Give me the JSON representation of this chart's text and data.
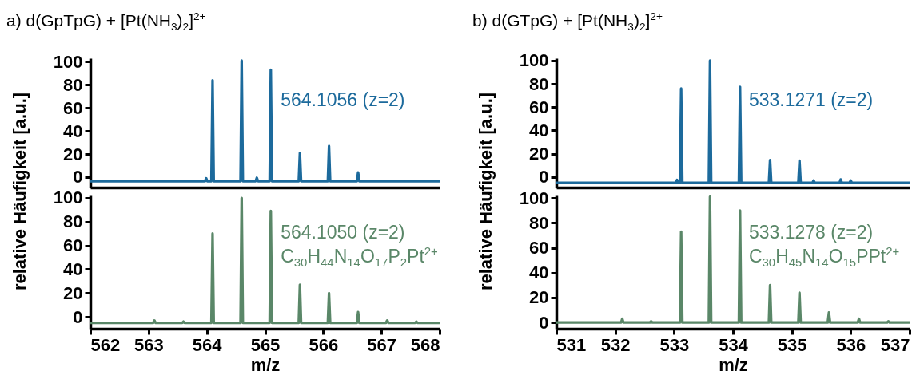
{
  "chart_data": [
    {
      "type": "line",
      "title": "a) d(GpTpG) + [Pt(NH$_{3}$)$_{2}$]$^{2+}$",
      "xlim": [
        562,
        568
      ],
      "ylim": [
        -9,
        103
      ],
      "yticks": [
        0,
        20,
        40,
        60,
        80,
        100
      ],
      "tick_labels": "y",
      "annotations": [
        "564.1056 (z=2)"
      ],
      "series": [
        {
          "color": "#1c6a9c",
          "x": [
            562,
            563.97,
            563.99,
            564.01,
            564.08,
            564.1,
            564.12,
            564.58,
            564.6,
            564.62,
            564.84,
            564.86,
            564.88,
            565.08,
            565.1,
            565.12,
            565.58,
            565.6,
            565.62,
            566.08,
            566.1,
            566.12,
            566.58,
            566.6,
            566.62,
            568
          ],
          "values": [
            -3.5,
            -3.5,
            -1,
            -3.5,
            -3.5,
            84,
            -3.5,
            -3.5,
            101,
            -3.5,
            -3.5,
            -0.5,
            -3.5,
            -3.5,
            93,
            -3.5,
            -3.5,
            21,
            -3.5,
            -3.5,
            27,
            -3.5,
            -3.5,
            4,
            -3.5,
            -3.5
          ]
        }
      ]
    },
    {
      "type": "line",
      "xlabel": "m/z",
      "ylabel": "relative Häufigkeit [a.u.]",
      "xlim": [
        562,
        568
      ],
      "ylim": [
        -10,
        102
      ],
      "xticks": [
        562,
        563,
        564,
        565,
        566,
        567,
        568
      ],
      "yticks": [
        0,
        20,
        40,
        60,
        80,
        100
      ],
      "annotations": [
        "564.1050 (z=2)",
        "C$_{30}$H$_{44}$N$_{14}$O$_{17}$P$_{2}$Pt$^{2+}$"
      ],
      "series": [
        {
          "color": "#5a8768",
          "x": [
            562,
            563.08,
            563.1,
            563.12,
            563.58,
            563.6,
            563.62,
            564.08,
            564.1,
            564.12,
            564.58,
            564.6,
            564.62,
            565.08,
            565.1,
            565.12,
            565.58,
            565.6,
            565.62,
            566.08,
            566.1,
            566.12,
            566.58,
            566.6,
            566.62,
            567.08,
            567.1,
            567.12,
            567.58,
            567.6,
            567.62,
            568
          ],
          "values": [
            -5,
            -5,
            -3,
            -5,
            -5,
            -4,
            -5,
            -5,
            70,
            -5,
            -5,
            100,
            -5,
            -5,
            89,
            -5,
            -5,
            27,
            -5,
            -5,
            20,
            -5,
            -5,
            4,
            -5,
            -5,
            -3,
            -5,
            -5,
            -4,
            -5,
            -5
          ]
        }
      ]
    },
    {
      "type": "line",
      "title": "b) d(GTpG) + [Pt(NH$_{3}$)$_{2}$]$^{2+}$",
      "xlim": [
        531,
        537
      ],
      "ylim": [
        -9,
        102
      ],
      "yticks": [
        0,
        20,
        40,
        60,
        80,
        100
      ],
      "tick_labels": "y",
      "annotations": [
        "533.1271 (z=2)"
      ],
      "series": [
        {
          "color": "#1c6a9c",
          "x": [
            531,
            533.03,
            533.05,
            533.07,
            533.1,
            533.12,
            533.14,
            533.59,
            533.61,
            533.63,
            534.1,
            534.12,
            534.14,
            534.61,
            534.63,
            534.65,
            535.11,
            535.13,
            535.15,
            535.35,
            535.37,
            535.39,
            535.81,
            535.83,
            535.85,
            535.98,
            536,
            536.02,
            537
          ],
          "values": [
            -5,
            -5,
            -2.5,
            -5,
            -5,
            76,
            -5,
            -5,
            100,
            -5,
            -5,
            77.5,
            -5,
            -5,
            14.5,
            -5,
            -5,
            14,
            -5,
            -5,
            -3,
            -5,
            -5,
            -2,
            -5,
            -5,
            -3,
            -5,
            -5
          ]
        }
      ]
    },
    {
      "type": "line",
      "xlabel": "m/z",
      "ylabel": "relative Häufigkeit [a.u.]",
      "xlim": [
        531,
        537
      ],
      "ylim": [
        -5,
        102
      ],
      "xticks": [
        531,
        532,
        533,
        534,
        535,
        536,
        537
      ],
      "yticks": [
        0,
        20,
        40,
        60,
        80,
        100
      ],
      "annotations": [
        "533.1278 (z=2)",
        "C$_{30}$H$_{45}$N$_{14}$O$_{15}$PPt$^{2+}$"
      ],
      "series": [
        {
          "color": "#5a8768",
          "x": [
            531,
            532.1,
            532.12,
            532.14,
            532.59,
            532.61,
            532.63,
            533.1,
            533.12,
            533.14,
            533.59,
            533.61,
            533.63,
            534.1,
            534.12,
            534.14,
            534.61,
            534.63,
            534.65,
            535.11,
            535.13,
            535.15,
            535.61,
            535.63,
            535.65,
            536.12,
            536.14,
            536.16,
            536.62,
            536.64,
            536.66,
            537
          ],
          "values": [
            0,
            0,
            3,
            0,
            0,
            1,
            0,
            0,
            73,
            0,
            0,
            101,
            0,
            0,
            90,
            0,
            0,
            30,
            0,
            0,
            24,
            0,
            0,
            8,
            0,
            0,
            3,
            0,
            0,
            1,
            0,
            0
          ]
        }
      ]
    }
  ]
}
